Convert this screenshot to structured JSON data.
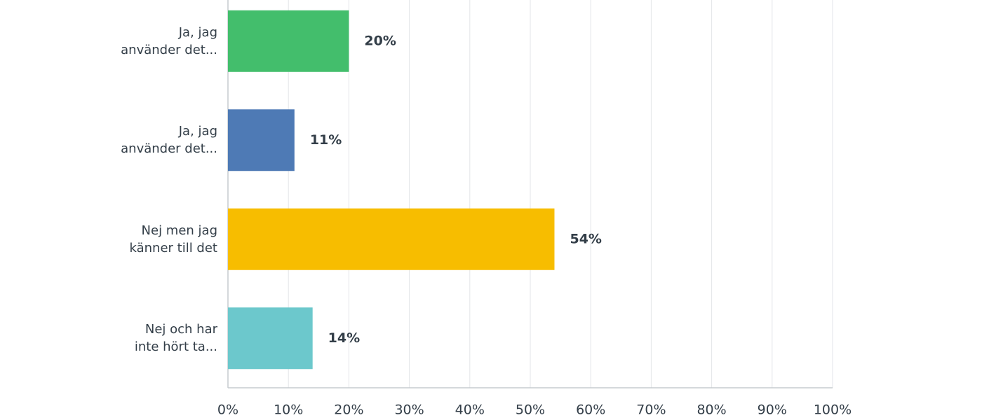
{
  "chart_data": {
    "type": "hbar",
    "categories": [
      "Ja, jag\nanvänder det...",
      "Ja, jag\nanvänder det...",
      "Nej men jag\nkänner till det",
      "Nej och har\ninte hört ta..."
    ],
    "values": [
      20,
      11,
      54,
      14
    ],
    "value_labels": [
      "20%",
      "11%",
      "54%",
      "14%"
    ],
    "colors": [
      "#43be6c",
      "#4e7ab5",
      "#f7bd00",
      "#6cc8cc"
    ],
    "xlim": [
      0,
      100
    ],
    "xticks": [
      {
        "value": 0,
        "label": "0%"
      },
      {
        "value": 10,
        "label": "10%"
      },
      {
        "value": 20,
        "label": "20%"
      },
      {
        "value": 30,
        "label": "30%"
      },
      {
        "value": 40,
        "label": "40%"
      },
      {
        "value": 50,
        "label": "50%"
      },
      {
        "value": 60,
        "label": "60%"
      },
      {
        "value": 70,
        "label": "70%"
      },
      {
        "value": 80,
        "label": "80%"
      },
      {
        "value": 90,
        "label": "90%"
      },
      {
        "value": 100,
        "label": "100%"
      }
    ],
    "grid": true
  }
}
